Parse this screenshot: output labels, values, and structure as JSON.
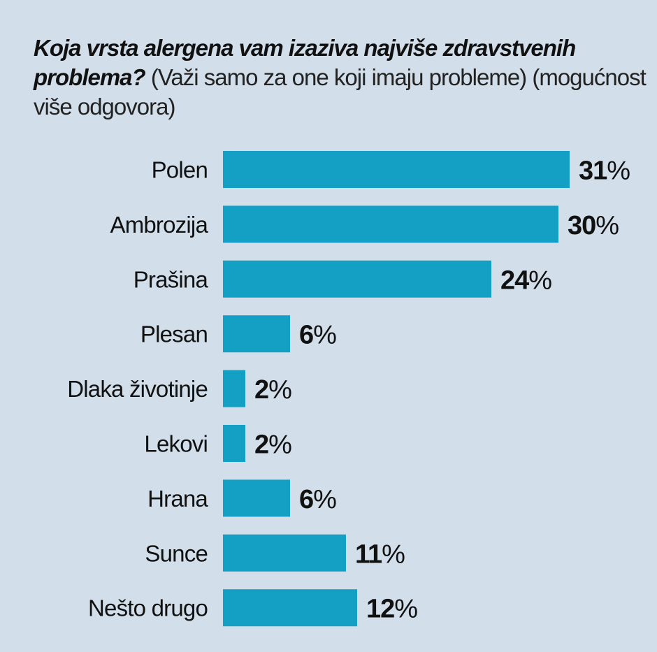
{
  "chart_data": {
    "type": "bar",
    "orientation": "horizontal",
    "title_question": "Koja vrsta alergena vam izaziva najviše zdravstvenih problema?",
    "title_note": "(Važi samo za one koji imaju probleme) (mogućnost više odgovora)",
    "categories": [
      "Polen",
      "Ambrozija",
      "Prašina",
      "Plesan",
      "Dlaka životinje",
      "Lekovi",
      "Hrana",
      "Sunce",
      "Nešto drugo"
    ],
    "values": [
      31,
      30,
      24,
      6,
      2,
      2,
      6,
      11,
      12
    ],
    "value_suffix": "%",
    "colors": {
      "bar": "#14a0c4",
      "background": "#d2dfea",
      "text": "#111111"
    }
  }
}
